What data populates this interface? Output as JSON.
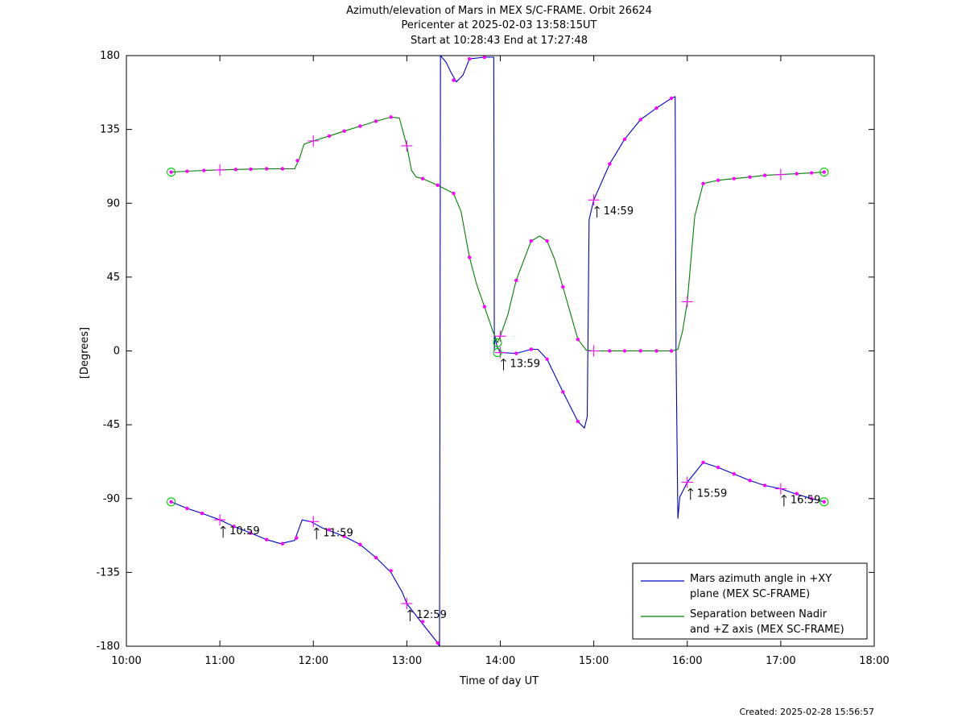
{
  "chart_data": {
    "type": "line",
    "title_lines": [
      "Azimuth/elevation of Mars in MEX S/C-FRAME.  Orbit 26624",
      "Pericenter at 2025-02-03 13:58:15UT",
      "Start at 10:28:43 End at 17:27:48"
    ],
    "xlabel": "Time of day UT",
    "ylabel": "[Degrees]",
    "xlim": [
      10.0,
      18.0
    ],
    "ylim": [
      -180,
      180
    ],
    "x_ticks": [
      10,
      11,
      12,
      13,
      14,
      15,
      16,
      17,
      18
    ],
    "x_tick_labels": [
      "10:00",
      "11:00",
      "12:00",
      "13:00",
      "14:00",
      "15:00",
      "16:00",
      "17:00",
      "18:00"
    ],
    "y_ticks": [
      180,
      135,
      90,
      45,
      0,
      -45,
      -90,
      -135,
      -180
    ],
    "y_tick_labels": [
      "180",
      "135",
      "90",
      "45",
      "0",
      "-45",
      "-90",
      "-135",
      "-180"
    ],
    "grid": false,
    "legend_position": "bottom-right",
    "series": [
      {
        "name": "Mars azimuth angle in +XY plane (MEX SC-FRAME)",
        "legend_lines": [
          "Mars azimuth angle in +XY",
          "plane (MEX SC-FRAME)"
        ],
        "color": "#0000cc",
        "points": [
          [
            10.479,
            -92
          ],
          [
            10.65,
            -96
          ],
          [
            10.81,
            -99
          ],
          [
            11.0,
            -103
          ],
          [
            11.15,
            -107
          ],
          [
            11.33,
            -111
          ],
          [
            11.5,
            -115
          ],
          [
            11.65,
            -117.5
          ],
          [
            11.8,
            -115.5
          ],
          [
            11.88,
            -103
          ],
          [
            11.97,
            -104
          ],
          [
            12.1,
            -108
          ],
          [
            12.33,
            -113
          ],
          [
            12.5,
            -118
          ],
          [
            12.67,
            -126
          ],
          [
            12.83,
            -135
          ],
          [
            12.95,
            -147
          ],
          [
            13.0,
            -154
          ],
          [
            13.15,
            -165
          ],
          [
            13.33,
            -178
          ],
          [
            13.35,
            -180
          ],
          [
            13.355,
            0
          ],
          [
            13.36,
            180
          ],
          [
            13.42,
            176
          ],
          [
            13.47,
            170
          ],
          [
            13.53,
            164
          ],
          [
            13.6,
            168
          ],
          [
            13.67,
            178
          ],
          [
            13.83,
            179
          ],
          [
            13.93,
            179
          ],
          [
            13.936,
            0
          ],
          [
            13.94,
            8
          ],
          [
            13.97,
            2
          ],
          [
            14.0,
            -1
          ],
          [
            14.17,
            -1.5
          ],
          [
            14.33,
            1
          ],
          [
            14.4,
            1
          ],
          [
            14.5,
            -5
          ],
          [
            14.67,
            -25
          ],
          [
            14.83,
            -43
          ],
          [
            14.9,
            -47
          ],
          [
            14.93,
            -40
          ],
          [
            14.95,
            80
          ],
          [
            15.0,
            92
          ],
          [
            15.17,
            114
          ],
          [
            15.33,
            129
          ],
          [
            15.5,
            141
          ],
          [
            15.67,
            148
          ],
          [
            15.83,
            154
          ],
          [
            15.87,
            155
          ],
          [
            15.88,
            0
          ],
          [
            15.9,
            -102
          ],
          [
            15.92,
            -89
          ],
          [
            16.0,
            -80
          ],
          [
            16.17,
            -68
          ],
          [
            16.33,
            -71
          ],
          [
            16.5,
            -75
          ],
          [
            16.67,
            -79
          ],
          [
            16.83,
            -82
          ],
          [
            17.0,
            -84
          ],
          [
            17.15,
            -87
          ],
          [
            17.33,
            -90
          ],
          [
            17.464,
            -92
          ]
        ]
      },
      {
        "name": "Separation between Nadir and +Z axis (MEX SC-FRAME)",
        "legend_lines": [
          "Separation between Nadir",
          "and +Z axis (MEX SC-FRAME)"
        ],
        "color": "#008000",
        "points": [
          [
            10.479,
            109
          ],
          [
            10.65,
            109.5
          ],
          [
            10.83,
            110
          ],
          [
            11.0,
            110.3
          ],
          [
            11.17,
            110.6
          ],
          [
            11.33,
            110.8
          ],
          [
            11.5,
            111
          ],
          [
            11.67,
            111
          ],
          [
            11.8,
            111
          ],
          [
            11.85,
            117
          ],
          [
            11.9,
            126
          ],
          [
            12.0,
            128
          ],
          [
            12.17,
            131
          ],
          [
            12.33,
            134
          ],
          [
            12.5,
            137
          ],
          [
            12.67,
            140
          ],
          [
            12.83,
            142.5
          ],
          [
            12.92,
            142
          ],
          [
            13.0,
            125
          ],
          [
            13.05,
            110
          ],
          [
            13.1,
            106
          ],
          [
            13.17,
            105
          ],
          [
            13.33,
            101
          ],
          [
            13.5,
            96
          ],
          [
            13.58,
            85
          ],
          [
            13.67,
            57
          ],
          [
            13.75,
            40
          ],
          [
            13.83,
            27
          ],
          [
            13.92,
            12
          ],
          [
            13.97,
            5
          ],
          [
            14.0,
            9
          ],
          [
            14.08,
            22
          ],
          [
            14.17,
            43
          ],
          [
            14.33,
            67
          ],
          [
            14.42,
            70
          ],
          [
            14.5,
            67
          ],
          [
            14.58,
            56
          ],
          [
            14.67,
            39
          ],
          [
            14.75,
            23
          ],
          [
            14.83,
            7
          ],
          [
            14.92,
            0.5
          ],
          [
            15.0,
            0
          ],
          [
            15.17,
            0
          ],
          [
            15.33,
            0
          ],
          [
            15.5,
            0
          ],
          [
            15.67,
            0
          ],
          [
            15.83,
            0
          ],
          [
            15.9,
            1
          ],
          [
            15.95,
            12
          ],
          [
            16.0,
            30
          ],
          [
            16.08,
            82
          ],
          [
            16.17,
            102
          ],
          [
            16.33,
            104
          ],
          [
            16.5,
            105
          ],
          [
            16.67,
            106
          ],
          [
            16.83,
            107
          ],
          [
            17.0,
            107.5
          ],
          [
            17.17,
            108
          ],
          [
            17.33,
            108.5
          ],
          [
            17.464,
            109
          ]
        ]
      }
    ],
    "marker_color": "#ff00ff",
    "dot_markers": [
      [
        10.479,
        -92
      ],
      [
        10.65,
        -96
      ],
      [
        10.81,
        -99
      ],
      [
        11.15,
        -107
      ],
      [
        11.33,
        -111
      ],
      [
        11.5,
        -115
      ],
      [
        11.67,
        -117.5
      ],
      [
        11.82,
        -114
      ],
      [
        12.17,
        -109
      ],
      [
        12.33,
        -113
      ],
      [
        12.5,
        -118
      ],
      [
        12.67,
        -126
      ],
      [
        12.83,
        -134
      ],
      [
        13.17,
        -165
      ],
      [
        13.33,
        -178
      ],
      [
        13.5,
        165
      ],
      [
        13.67,
        178
      ],
      [
        13.83,
        179
      ],
      [
        14.17,
        -1.5
      ],
      [
        14.33,
        1
      ],
      [
        14.5,
        -5
      ],
      [
        14.67,
        -25
      ],
      [
        14.83,
        -43
      ],
      [
        15.17,
        0
      ],
      [
        15.33,
        0
      ],
      [
        15.5,
        0
      ],
      [
        15.67,
        0
      ],
      [
        15.83,
        0
      ],
      [
        16.17,
        -68
      ],
      [
        16.33,
        -71
      ],
      [
        16.5,
        -75
      ],
      [
        16.67,
        -79
      ],
      [
        16.83,
        -82
      ],
      [
        17.17,
        -87
      ],
      [
        17.33,
        -90
      ],
      [
        17.464,
        -92
      ],
      [
        10.479,
        109
      ],
      [
        10.65,
        109.5
      ],
      [
        10.83,
        110
      ],
      [
        11.17,
        110.6
      ],
      [
        11.33,
        110.8
      ],
      [
        11.5,
        111
      ],
      [
        11.67,
        111
      ],
      [
        11.83,
        116
      ],
      [
        12.17,
        131
      ],
      [
        12.33,
        134
      ],
      [
        12.5,
        137
      ],
      [
        12.67,
        140
      ],
      [
        12.83,
        142.5
      ],
      [
        13.17,
        105
      ],
      [
        13.33,
        101
      ],
      [
        13.5,
        96
      ],
      [
        13.67,
        57
      ],
      [
        13.83,
        27
      ],
      [
        14.17,
        43
      ],
      [
        14.33,
        67
      ],
      [
        14.5,
        67
      ],
      [
        14.67,
        39
      ],
      [
        14.83,
        7
      ],
      [
        15.17,
        114
      ],
      [
        15.33,
        129
      ],
      [
        15.5,
        141
      ],
      [
        15.67,
        148
      ],
      [
        15.83,
        154
      ],
      [
        16.17,
        102
      ],
      [
        16.33,
        104
      ],
      [
        16.5,
        105
      ],
      [
        16.67,
        106
      ],
      [
        16.83,
        107
      ],
      [
        17.17,
        108
      ],
      [
        17.33,
        108.5
      ],
      [
        17.464,
        109
      ]
    ],
    "cross_markers": [
      [
        11.0,
        -103
      ],
      [
        11.0,
        110.3
      ],
      [
        12.0,
        -104
      ],
      [
        12.0,
        128
      ],
      [
        13.0,
        -154
      ],
      [
        13.0,
        125
      ],
      [
        14.0,
        -1
      ],
      [
        14.0,
        9
      ],
      [
        15.0,
        92
      ],
      [
        15.0,
        0
      ],
      [
        16.0,
        -80
      ],
      [
        16.0,
        30
      ],
      [
        17.0,
        -84
      ],
      [
        17.0,
        107.5
      ]
    ],
    "circle_markers": [
      [
        10.479,
        -92
      ],
      [
        10.479,
        109
      ],
      [
        13.97,
        -1
      ],
      [
        13.97,
        5
      ],
      [
        17.464,
        -92
      ],
      [
        17.464,
        109
      ]
    ],
    "hour_annotations": [
      {
        "x": 11.0,
        "y": -103,
        "label": "10:59"
      },
      {
        "x": 12.0,
        "y": -104,
        "label": "11:59"
      },
      {
        "x": 13.0,
        "y": -154,
        "label": "12:59"
      },
      {
        "x": 14.0,
        "y": -1,
        "label": "13:59"
      },
      {
        "x": 15.0,
        "y": 92,
        "label": "14:59"
      },
      {
        "x": 16.0,
        "y": -80,
        "label": "15:59"
      },
      {
        "x": 17.0,
        "y": -84,
        "label": "16:59"
      }
    ]
  },
  "footer": {
    "created": "Created: 2025-02-28 15:56:57"
  }
}
